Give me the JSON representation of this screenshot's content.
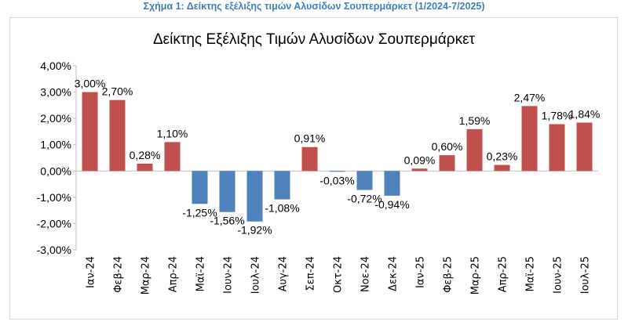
{
  "caption": "Σχήμα 1: Δείκτης εξέλιξης τιμών Αλυσίδων Σουπερμάρκετ (1/2024-7/2025)",
  "colors": {
    "positive": "#C0504D",
    "negative": "#4F81BD",
    "caption": "#3F7FC0"
  },
  "chart_data": {
    "type": "bar",
    "title": "Δείκτης Εξέλιξης Τιμών Αλυσίδων Σουπερμάρκετ",
    "xlabel": "",
    "ylabel": "",
    "ylim": [
      -3,
      4
    ],
    "yticks": [
      "4,00%",
      "3,00%",
      "2,00%",
      "1,00%",
      "0,00%",
      "-1,00%",
      "-2,00%",
      "-3,00%"
    ],
    "categories": [
      "Ιαν-24",
      "Φεβ-24",
      "Μαρ-24",
      "Απρ-24",
      "Μαϊ-24",
      "Ιουν-24",
      "Ιουλ-24",
      "Αυγ-24",
      "Σεπ-24",
      "Οκτ-24",
      "Νοε-24",
      "Δεκ-24",
      "Ιαν-25",
      "Φεβ-25",
      "Μαρ-25",
      "Απρ-25",
      "Μαϊ-25",
      "Ιουν-25",
      "Ιουλ-25"
    ],
    "values": [
      3.0,
      2.7,
      0.28,
      1.1,
      -1.25,
      -1.56,
      -1.92,
      -1.08,
      0.91,
      -0.03,
      -0.72,
      -0.94,
      0.09,
      0.6,
      1.59,
      0.23,
      2.47,
      1.78,
      1.84
    ],
    "labels": [
      "3,00%",
      "2,70%",
      "0,28%",
      "1,10%",
      "-1,25%",
      "-1,56%",
      "-1,92%",
      "-1,08%",
      "0,91%",
      "-0,03%",
      "-0,72%",
      "-0,94%",
      "0,09%",
      "0,60%",
      "1,59%",
      "0,23%",
      "2,47%",
      "1,78%",
      "1,84%"
    ],
    "legend": "none",
    "grid": false
  }
}
